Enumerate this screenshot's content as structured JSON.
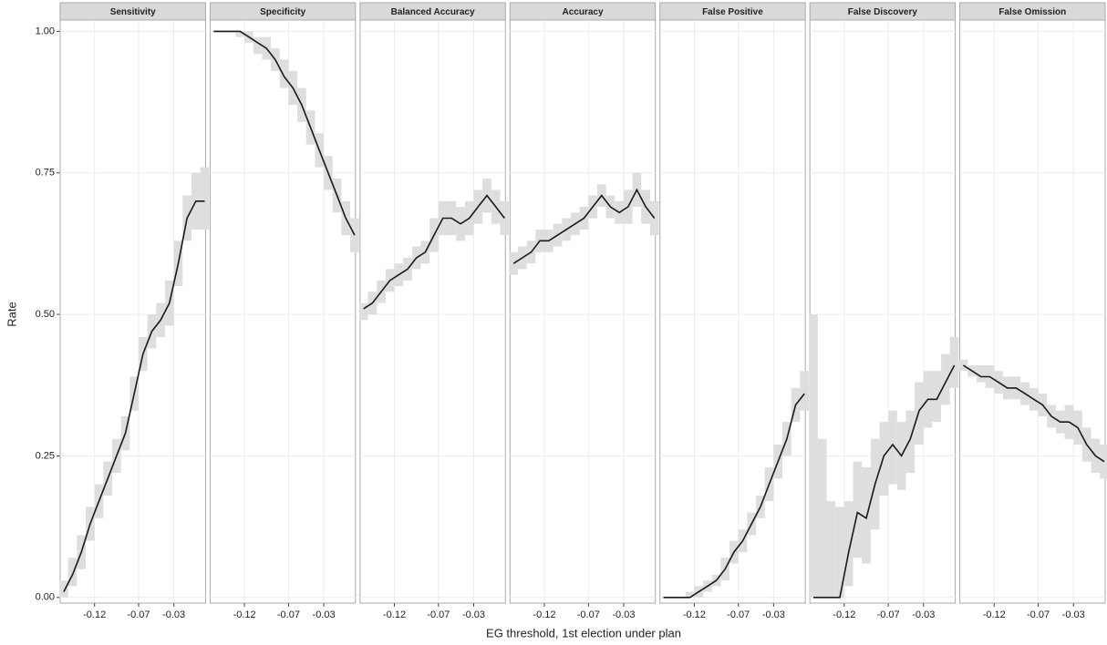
{
  "chart_data": {
    "type": "line",
    "xlabel": "EG threshold, 1st election under plan",
    "ylabel": "Rate",
    "x": [
      -0.155,
      -0.145,
      -0.135,
      -0.125,
      -0.115,
      -0.105,
      -0.095,
      -0.085,
      -0.075,
      -0.065,
      -0.055,
      -0.045,
      -0.035,
      -0.025,
      -0.015,
      -0.005,
      0.005
    ],
    "xlim": [
      -0.159,
      0.006
    ],
    "xticks": [
      -0.12,
      -0.07,
      -0.03
    ],
    "ylim": [
      -0.01,
      1.02
    ],
    "yticks": [
      {
        "value": 0,
        "label": "0.00"
      },
      {
        "value": 0.25,
        "label": "0.25"
      },
      {
        "value": 0.5,
        "label": "0.50"
      },
      {
        "value": 0.75,
        "label": "0.75"
      },
      {
        "value": 1,
        "label": "1.00"
      }
    ],
    "grid": true,
    "color": "#1a1a1a",
    "band_color": "#dedede",
    "panels": [
      {
        "name": "Sensitivity",
        "values": [
          0.01,
          0.04,
          0.08,
          0.13,
          0.17,
          0.21,
          0.25,
          0.29,
          0.36,
          0.43,
          0.47,
          0.49,
          0.52,
          0.59,
          0.67,
          0.7,
          0.7
        ],
        "lower": [
          0,
          0.02,
          0.05,
          0.1,
          0.14,
          0.18,
          0.22,
          0.26,
          0.33,
          0.4,
          0.44,
          0.46,
          0.48,
          0.55,
          0.63,
          0.65,
          0.65
        ],
        "upper": [
          0.03,
          0.07,
          0.11,
          0.16,
          0.2,
          0.24,
          0.28,
          0.32,
          0.39,
          0.46,
          0.5,
          0.52,
          0.56,
          0.63,
          0.71,
          0.75,
          0.76
        ]
      },
      {
        "name": "Specificity",
        "values": [
          1,
          1,
          1,
          1,
          0.99,
          0.98,
          0.97,
          0.95,
          0.92,
          0.9,
          0.87,
          0.83,
          0.79,
          0.75,
          0.71,
          0.67,
          0.64
        ],
        "lower": [
          1,
          1,
          1,
          0.99,
          0.98,
          0.96,
          0.95,
          0.93,
          0.9,
          0.87,
          0.84,
          0.8,
          0.76,
          0.72,
          0.68,
          0.64,
          0.61
        ],
        "upper": [
          1,
          1,
          1,
          1,
          1,
          0.99,
          0.99,
          0.97,
          0.95,
          0.93,
          0.9,
          0.86,
          0.82,
          0.78,
          0.74,
          0.7,
          0.67
        ]
      },
      {
        "name": "Balanced Accuracy",
        "values": [
          0.51,
          0.52,
          0.54,
          0.56,
          0.57,
          0.58,
          0.6,
          0.61,
          0.64,
          0.67,
          0.67,
          0.66,
          0.67,
          0.69,
          0.71,
          0.69,
          0.67
        ],
        "lower": [
          0.49,
          0.5,
          0.52,
          0.54,
          0.55,
          0.56,
          0.58,
          0.59,
          0.61,
          0.64,
          0.64,
          0.63,
          0.64,
          0.66,
          0.68,
          0.66,
          0.64
        ],
        "upper": [
          0.52,
          0.54,
          0.56,
          0.58,
          0.59,
          0.6,
          0.62,
          0.63,
          0.67,
          0.7,
          0.7,
          0.69,
          0.7,
          0.72,
          0.74,
          0.72,
          0.7
        ]
      },
      {
        "name": "Accuracy",
        "values": [
          0.59,
          0.6,
          0.61,
          0.63,
          0.63,
          0.64,
          0.65,
          0.66,
          0.67,
          0.69,
          0.71,
          0.69,
          0.68,
          0.69,
          0.72,
          0.69,
          0.67
        ],
        "lower": [
          0.57,
          0.58,
          0.59,
          0.61,
          0.61,
          0.62,
          0.63,
          0.64,
          0.65,
          0.67,
          0.69,
          0.67,
          0.66,
          0.66,
          0.69,
          0.66,
          0.64
        ],
        "upper": [
          0.61,
          0.62,
          0.63,
          0.65,
          0.65,
          0.66,
          0.67,
          0.68,
          0.69,
          0.71,
          0.73,
          0.71,
          0.7,
          0.72,
          0.75,
          0.72,
          0.7
        ]
      },
      {
        "name": "False Positive",
        "values": [
          0,
          0,
          0,
          0,
          0.01,
          0.02,
          0.03,
          0.05,
          0.08,
          0.1,
          0.13,
          0.16,
          0.2,
          0.24,
          0.28,
          0.34,
          0.36
        ],
        "lower": [
          0,
          0,
          0,
          0,
          0,
          0.01,
          0.02,
          0.03,
          0.06,
          0.08,
          0.11,
          0.14,
          0.17,
          0.21,
          0.25,
          0.31,
          0.33
        ],
        "upper": [
          0,
          0,
          0,
          0.01,
          0.02,
          0.03,
          0.04,
          0.07,
          0.1,
          0.12,
          0.15,
          0.18,
          0.23,
          0.27,
          0.31,
          0.37,
          0.4
        ]
      },
      {
        "name": "False Discovery",
        "values": [
          0,
          0,
          0,
          0,
          0.08,
          0.15,
          0.14,
          0.2,
          0.25,
          0.27,
          0.25,
          0.28,
          0.33,
          0.35,
          0.35,
          0.38,
          0.41
        ],
        "lower": [
          0,
          0,
          0,
          0,
          0.02,
          0.07,
          0.06,
          0.12,
          0.18,
          0.2,
          0.19,
          0.22,
          0.27,
          0.3,
          0.31,
          0.34,
          0.37
        ],
        "upper": [
          0.5,
          0.28,
          0.17,
          0.16,
          0.17,
          0.24,
          0.23,
          0.28,
          0.31,
          0.33,
          0.31,
          0.33,
          0.38,
          0.4,
          0.4,
          0.43,
          0.46
        ]
      },
      {
        "name": "False Omission",
        "values": [
          0.41,
          0.4,
          0.39,
          0.39,
          0.38,
          0.37,
          0.37,
          0.36,
          0.35,
          0.34,
          0.32,
          0.31,
          0.31,
          0.3,
          0.27,
          0.25,
          0.24
        ],
        "lower": [
          0.4,
          0.39,
          0.38,
          0.37,
          0.36,
          0.35,
          0.35,
          0.34,
          0.33,
          0.32,
          0.3,
          0.29,
          0.28,
          0.27,
          0.24,
          0.22,
          0.21
        ],
        "upper": [
          0.42,
          0.41,
          0.41,
          0.41,
          0.4,
          0.39,
          0.39,
          0.38,
          0.37,
          0.36,
          0.34,
          0.33,
          0.34,
          0.33,
          0.3,
          0.28,
          0.27
        ]
      }
    ]
  }
}
